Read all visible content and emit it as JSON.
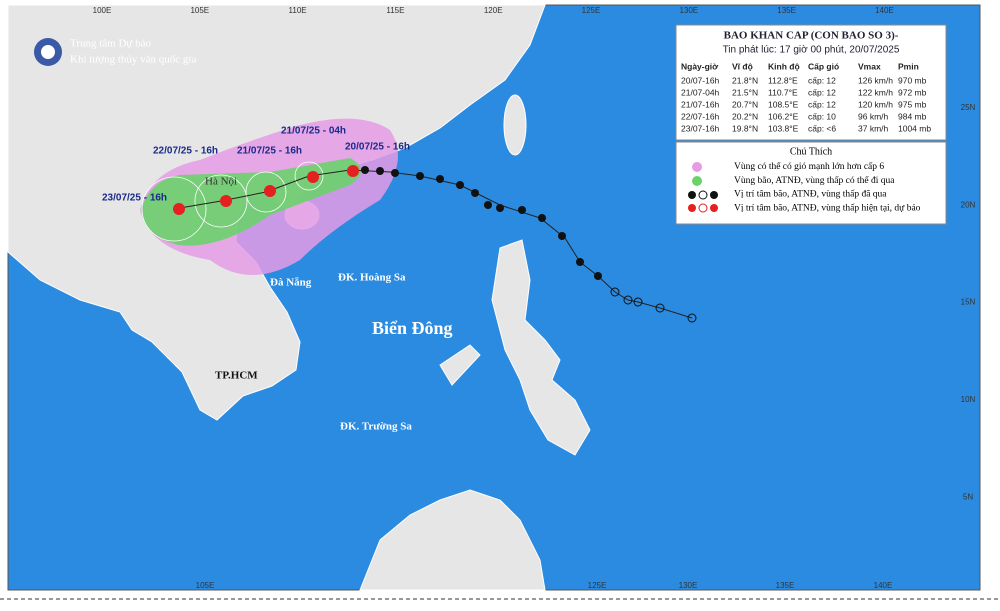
{
  "header": {
    "org_line1": "Trung tâm Dự báo",
    "org_line2": "Khí tượng thủy văn quốc gia"
  },
  "bulletin": {
    "title": "BAO KHAN CAP (CON BAO SO 3)-",
    "issued": "Tin phát lúc: 17 giờ 00 phút, 20/07/2025",
    "columns": [
      "Ngày-giờ",
      "Vĩ độ",
      "Kinh độ",
      "Cấp gió",
      "Vmax",
      "Pmin"
    ],
    "rows": [
      [
        "20/07-16h",
        "21.8°N",
        "112.8°E",
        "cấp: 12",
        "126 km/h",
        "970 mb"
      ],
      [
        "21/07-04h",
        "21.5°N",
        "110.7°E",
        "cấp: 12",
        "122 km/h",
        "972 mb"
      ],
      [
        "21/07-16h",
        "20.7°N",
        "108.5°E",
        "cấp: 12",
        "120 km/h",
        "975 mb"
      ],
      [
        "22/07-16h",
        "20.2°N",
        "106.2°E",
        "cấp: 10",
        "96 km/h",
        "984 mb"
      ],
      [
        "23/07-16h",
        "19.8°N",
        "103.8°E",
        "cấp: <6",
        "37 km/h",
        "1004 mb"
      ]
    ]
  },
  "legend": {
    "title": "Chú Thích",
    "items": [
      "Vùng có thể có gió mạnh lớn hơn cấp 6",
      "Vùng bão, ATNĐ, vùng thấp có thể đi qua",
      "Vị trí tâm bão, ATNĐ, vùng thấp đã qua",
      "Vị trí tâm bão, ATNĐ, vùng thấp hiện tại, dự báo"
    ]
  },
  "places": [
    "Hà Nội",
    "Đà Nẵng",
    "ĐK. Hoàng Sa",
    "Biển Đông",
    "TP.HCM",
    "ĐK. Trường Sa"
  ],
  "forecast_times": [
    "23/07/25 - 16h",
    "22/07/25 - 16h",
    "21/07/25 - 16h",
    "21/07/25 - 04h",
    "20/07/25 - 16h"
  ],
  "axes": {
    "lon_top": [
      "100E",
      "105E",
      "110E",
      "115E",
      "120E",
      "125E",
      "130E",
      "135E",
      "140E"
    ],
    "lat": [
      "25N",
      "20N",
      "15N",
      "10N",
      "5N"
    ],
    "lon_bottom": [
      "105E",
      "125E",
      "130E",
      "135E",
      "140E"
    ]
  }
}
